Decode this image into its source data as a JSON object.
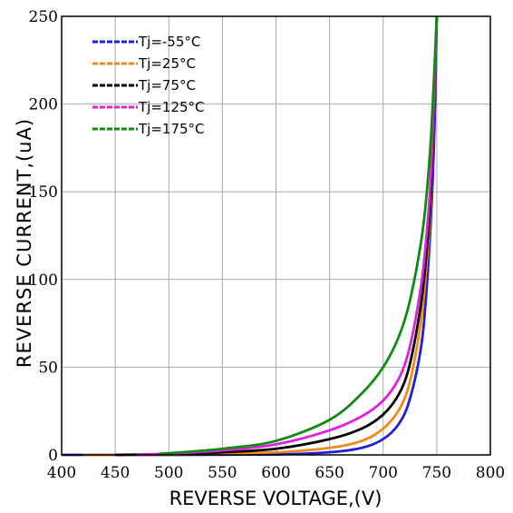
{
  "chart_data": {
    "type": "line",
    "xlabel": "REVERSE VOLTAGE,(V)",
    "ylabel": "REVERSE CURRENT,(uA)",
    "xlim": [
      400,
      800
    ],
    "ylim": [
      0,
      250
    ],
    "xticks": [
      "400",
      "450",
      "500",
      "550",
      "600",
      "650",
      "700",
      "750",
      "800"
    ],
    "yticks": [
      "0",
      "50",
      "100",
      "150",
      "200",
      "250"
    ],
    "grid": true,
    "legend_position": "top-left",
    "series": [
      {
        "name": "Tj=-55°C",
        "color": "#1f1fd6",
        "x": [
          400,
          500,
          600,
          650,
          680,
          700,
          715,
          725,
          735,
          740,
          745,
          748,
          750
        ],
        "y": [
          0,
          0,
          0.3,
          1.5,
          4,
          9,
          18,
          32,
          60,
          90,
          140,
          190,
          250
        ]
      },
      {
        "name": "Tj=25°C",
        "color": "#f08a1c",
        "x": [
          420,
          500,
          600,
          650,
          680,
          700,
          715,
          725,
          735,
          740,
          745,
          750
        ],
        "y": [
          0,
          0.2,
          1.5,
          4,
          8,
          15,
          26,
          42,
          75,
          105,
          150,
          250
        ]
      },
      {
        "name": "Tj=75°C",
        "color": "#000000",
        "x": [
          450,
          500,
          550,
          600,
          650,
          680,
          700,
          715,
          725,
          735,
          740,
          745,
          750
        ],
        "y": [
          0,
          0.5,
          1.5,
          3.5,
          9,
          15,
          23,
          35,
          52,
          85,
          112,
          155,
          250
        ]
      },
      {
        "name": "Tj=125°C",
        "color": "#e020e0",
        "x": [
          470,
          500,
          550,
          600,
          650,
          680,
          700,
          715,
          725,
          735,
          740,
          745,
          750
        ],
        "y": [
          0,
          0.8,
          2.5,
          6,
          14,
          22,
          31,
          44,
          62,
          95,
          122,
          165,
          250
        ]
      },
      {
        "name": "Tj=175°C",
        "color": "#108a10",
        "x": [
          490,
          550,
          600,
          650,
          680,
          700,
          715,
          725,
          735,
          740,
          745,
          750
        ],
        "y": [
          0.5,
          3.5,
          8,
          20,
          35,
          50,
          68,
          88,
          120,
          145,
          185,
          250
        ]
      }
    ]
  }
}
